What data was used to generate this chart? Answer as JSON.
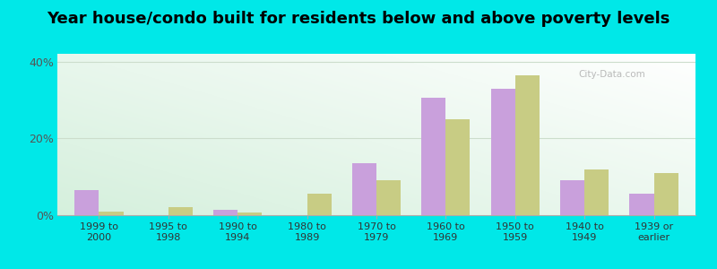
{
  "title": "Year house/condo built for residents below and above poverty levels",
  "categories": [
    "1999 to\n2000",
    "1995 to\n1998",
    "1990 to\n1994",
    "1980 to\n1989",
    "1970 to\n1979",
    "1960 to\n1969",
    "1950 to\n1959",
    "1940 to\n1949",
    "1939 or\nearlier"
  ],
  "below_poverty": [
    6.5,
    0,
    1.5,
    0,
    13.5,
    30.5,
    33.0,
    9.0,
    5.5
  ],
  "above_poverty": [
    1.0,
    2.0,
    0.8,
    5.5,
    9.0,
    25.0,
    36.5,
    12.0,
    11.0
  ],
  "below_color": "#c9a0dc",
  "above_color": "#c8cc84",
  "ylim": [
    0,
    42
  ],
  "yticks": [
    0,
    20,
    40
  ],
  "ytick_labels": [
    "0%",
    "20%",
    "40%"
  ],
  "outer_background": "#00e8e8",
  "bar_width": 0.35,
  "title_fontsize": 13,
  "grid_color": "#ccddcc",
  "watermark": "City-Data.com"
}
